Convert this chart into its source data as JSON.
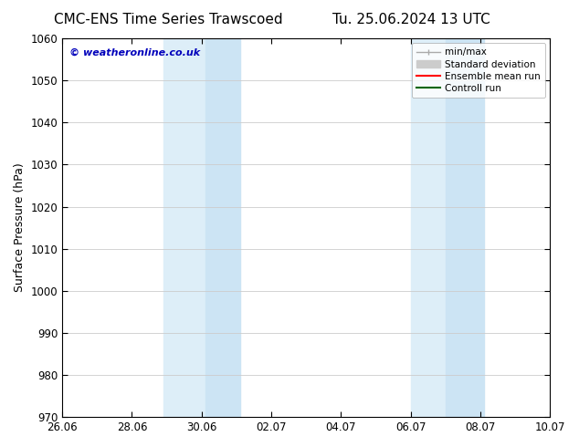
{
  "title_left": "CMC-ENS Time Series Trawscoed",
  "title_right": "Tu. 25.06.2024 13 UTC",
  "ylabel": "Surface Pressure (hPa)",
  "ylim": [
    970,
    1060
  ],
  "yticks": [
    970,
    980,
    990,
    1000,
    1010,
    1020,
    1030,
    1040,
    1050,
    1060
  ],
  "xtick_labels": [
    "26.06",
    "28.06",
    "30.06",
    "02.07",
    "04.07",
    "06.07",
    "08.07",
    "10.07"
  ],
  "xtick_positions": [
    0,
    2,
    4,
    6,
    8,
    10,
    12,
    14
  ],
  "xlim": [
    0,
    14
  ],
  "watermark": "© weatheronline.co.uk",
  "watermark_color": "#0000bb",
  "bg_color": "#ffffff",
  "plot_bg_color": "#ffffff",
  "shaded_bands": [
    {
      "x_start": 2.9,
      "x_end": 4.1,
      "color": "#ddeef8"
    },
    {
      "x_start": 4.1,
      "x_end": 5.1,
      "color": "#cce4f4"
    },
    {
      "x_start": 10.0,
      "x_end": 11.0,
      "color": "#ddeef8"
    },
    {
      "x_start": 11.0,
      "x_end": 12.1,
      "color": "#cce4f4"
    }
  ],
  "legend_items": [
    {
      "label": "min/max",
      "color": "#aaaaaa",
      "lw": 1.0
    },
    {
      "label": "Standard deviation",
      "color": "#cccccc",
      "lw": 5
    },
    {
      "label": "Ensemble mean run",
      "color": "#ff0000",
      "lw": 1.5
    },
    {
      "label": "Controll run",
      "color": "#006600",
      "lw": 1.5
    }
  ],
  "grid_color": "#cccccc",
  "tick_color": "#000000",
  "title_fontsize": 11,
  "axis_label_fontsize": 9,
  "tick_fontsize": 8.5,
  "watermark_fontsize": 8
}
